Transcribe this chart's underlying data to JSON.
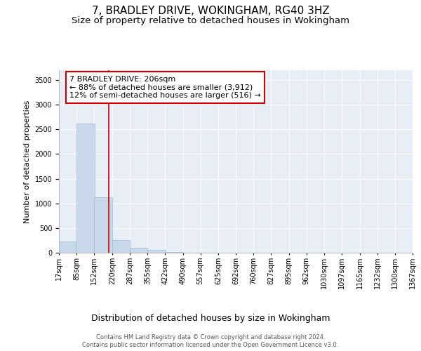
{
  "title": "7, BRADLEY DRIVE, WOKINGHAM, RG40 3HZ",
  "subtitle": "Size of property relative to detached houses in Wokingham",
  "xlabel": "Distribution of detached houses by size in Wokingham",
  "ylabel": "Number of detached properties",
  "footer_line1": "Contains HM Land Registry data © Crown copyright and database right 2024.",
  "footer_line2": "Contains public sector information licensed under the Open Government Licence v3.0.",
  "annotation_line1": "7 BRADLEY DRIVE: 206sqm",
  "annotation_line2": "← 88% of detached houses are smaller (3,912)",
  "annotation_line3": "12% of semi-detached houses are larger (516) →",
  "bar_color": "#c8d8ea",
  "bar_edge_color": "#a0bcd4",
  "vline_color": "#cc0000",
  "annotation_box_edge_color": "#cc0000",
  "bin_edges": [
    17,
    85,
    152,
    220,
    287,
    355,
    422,
    490,
    557,
    625,
    692,
    760,
    827,
    895,
    962,
    1030,
    1097,
    1165,
    1232,
    1300,
    1367
  ],
  "bin_labels": [
    "17sqm",
    "85sqm",
    "152sqm",
    "220sqm",
    "287sqm",
    "355sqm",
    "422sqm",
    "490sqm",
    "557sqm",
    "625sqm",
    "692sqm",
    "760sqm",
    "827sqm",
    "895sqm",
    "962sqm",
    "1030sqm",
    "1097sqm",
    "1165sqm",
    "1232sqm",
    "1300sqm",
    "1367sqm"
  ],
  "bar_heights": [
    230,
    2620,
    1120,
    255,
    95,
    50,
    20,
    0,
    0,
    0,
    0,
    0,
    0,
    0,
    0,
    0,
    0,
    0,
    0,
    0
  ],
  "ylim": [
    0,
    3700
  ],
  "yticks": [
    0,
    500,
    1000,
    1500,
    2000,
    2500,
    3000,
    3500
  ],
  "plot_bg_color": "#e8eef6",
  "grid_color": "#ffffff",
  "title_fontsize": 11,
  "subtitle_fontsize": 9.5,
  "annotation_fontsize": 8,
  "ylabel_fontsize": 8,
  "xlabel_fontsize": 9,
  "footer_fontsize": 6,
  "tick_fontsize": 7,
  "vline_x": 206
}
